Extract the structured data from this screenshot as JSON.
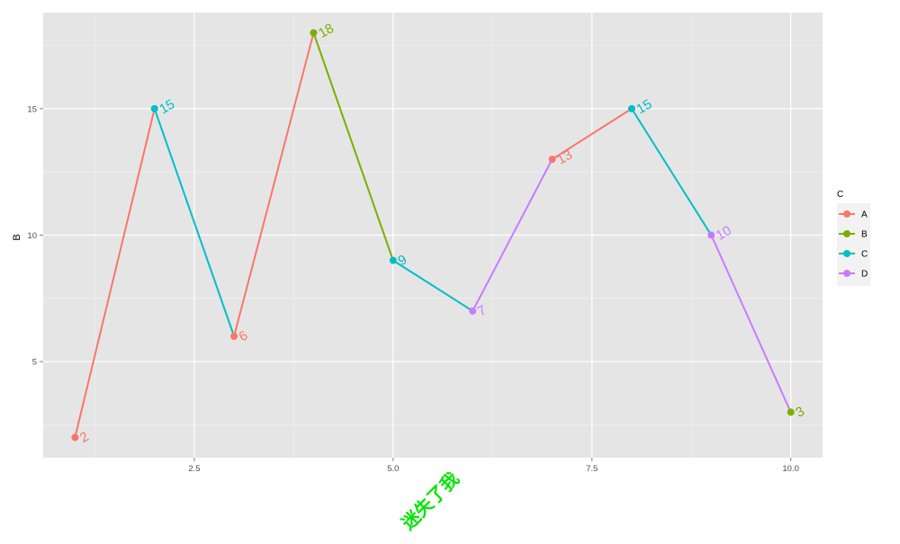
{
  "chart_data": {
    "type": "line",
    "xlabel": "迷失了我",
    "ylabel": "B",
    "xlim": [
      0.6,
      10.4
    ],
    "ylim": [
      1.2,
      18.8
    ],
    "x_ticks": [
      {
        "value": 2.5,
        "label": "2.5"
      },
      {
        "value": 5.0,
        "label": "5.0"
      },
      {
        "value": 7.5,
        "label": "7.5"
      },
      {
        "value": 10.0,
        "label": "10.0"
      }
    ],
    "y_ticks": [
      {
        "value": 5,
        "label": "5"
      },
      {
        "value": 10,
        "label": "10"
      },
      {
        "value": 15,
        "label": "15"
      }
    ],
    "grid": true,
    "legend": {
      "title": "C",
      "position": "right",
      "entries": [
        {
          "name": "A",
          "color": "#F8766D"
        },
        {
          "name": "B",
          "color": "#7CAE00"
        },
        {
          "name": "C",
          "color": "#00BFC4"
        },
        {
          "name": "D",
          "color": "#C77CFF"
        }
      ]
    },
    "points": [
      {
        "x": 1,
        "y": 2,
        "group": "A",
        "label": "2"
      },
      {
        "x": 2,
        "y": 15,
        "group": "C",
        "label": "15"
      },
      {
        "x": 3,
        "y": 6,
        "group": "A",
        "label": "6"
      },
      {
        "x": 4,
        "y": 18,
        "group": "B",
        "label": "18"
      },
      {
        "x": 5,
        "y": 9,
        "group": "C",
        "label": "9"
      },
      {
        "x": 6,
        "y": 7,
        "group": "D",
        "label": "7"
      },
      {
        "x": 7,
        "y": 13,
        "group": "A",
        "label": "13"
      },
      {
        "x": 8,
        "y": 15,
        "group": "C",
        "label": "15"
      },
      {
        "x": 9,
        "y": 10,
        "group": "D",
        "label": "10"
      },
      {
        "x": 10,
        "y": 3,
        "group": "B",
        "label": "3"
      }
    ]
  }
}
